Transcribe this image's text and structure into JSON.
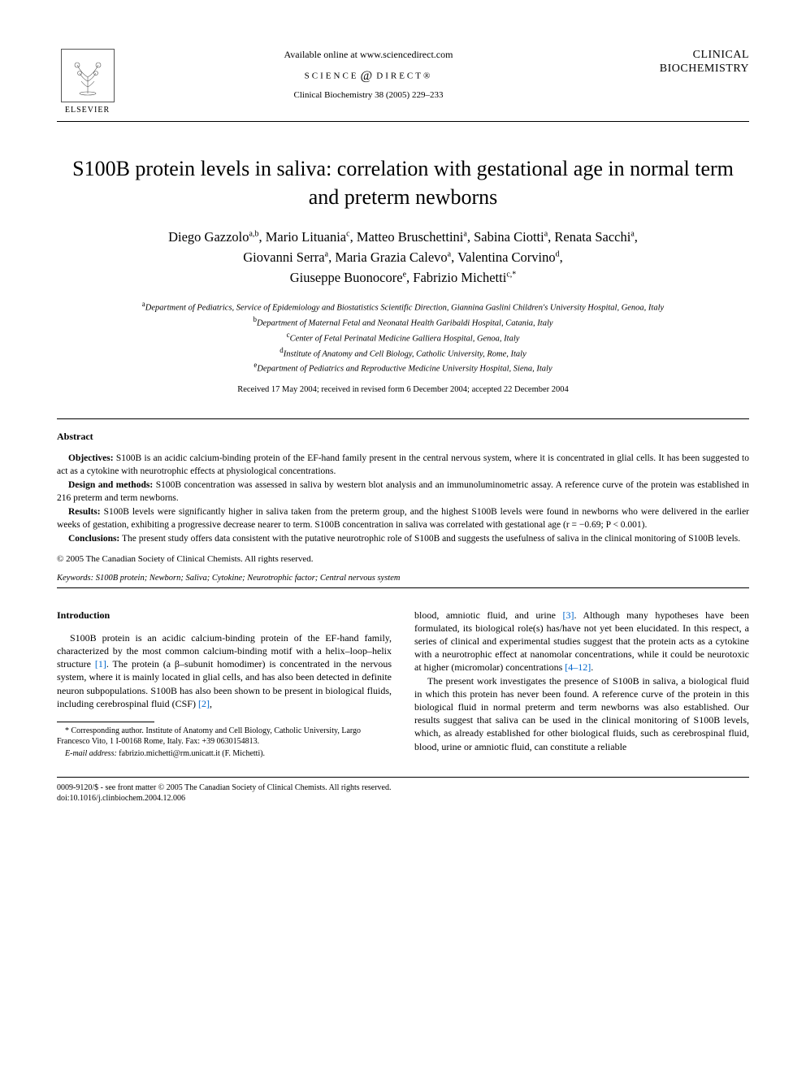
{
  "header": {
    "publisher": "ELSEVIER",
    "available": "Available online at www.sciencedirect.com",
    "portal": "SCIENCE",
    "portal2": "DIRECT®",
    "citation": "Clinical Biochemistry 38 (2005) 229–233",
    "journal_line1": "CLINICAL",
    "journal_line2": "BIOCHEMISTRY"
  },
  "title": "S100B protein levels in saliva: correlation with gestational age in normal term and preterm newborns",
  "authors_html": "Diego Gazzolo|a,b|, Mario Lituania|c|, Matteo Bruschettini|a|, Sabina Ciotti|a|, Renata Sacchi|a|, Giovanni Serra|a|, Maria Grazia Calevo|a|, Valentina Corvino|d|, Giuseppe Buonocore|e|, Fabrizio Michetti|c,*|",
  "affiliations": [
    {
      "sup": "a",
      "text": "Department of Pediatrics, Service of Epidemiology and Biostatistics Scientific Direction, Giannina Gaslini Children's University Hospital, Genoa, Italy"
    },
    {
      "sup": "b",
      "text": "Department of Maternal Fetal and Neonatal Health Garibaldi Hospital, Catania, Italy"
    },
    {
      "sup": "c",
      "text": "Center of Fetal Perinatal Medicine Galliera Hospital, Genoa, Italy"
    },
    {
      "sup": "d",
      "text": "Institute of Anatomy and Cell Biology, Catholic University, Rome, Italy"
    },
    {
      "sup": "e",
      "text": "Department of Pediatrics and Reproductive Medicine University Hospital, Siena, Italy"
    }
  ],
  "received": "Received 17 May 2004; received in revised form 6 December 2004; accepted 22 December 2004",
  "abstract": {
    "head": "Abstract",
    "objectives_label": "Objectives:",
    "objectives": "S100B is an acidic calcium-binding protein of the EF-hand family present in the central nervous system, where it is concentrated in glial cells. It has been suggested to act as a cytokine with neurotrophic effects at physiological concentrations.",
    "design_label": "Design and methods:",
    "design": "S100B concentration was assessed in saliva by western blot analysis and an immunoluminometric assay. A reference curve of the protein was established in 216 preterm and term newborns.",
    "results_label": "Results:",
    "results": "S100B levels were significantly higher in saliva taken from the preterm group, and the highest S100B levels were found in newborns who were delivered in the earlier weeks of gestation, exhibiting a progressive decrease nearer to term. S100B concentration in saliva was correlated with gestational age (r = −0.69; P < 0.001).",
    "conclusions_label": "Conclusions:",
    "conclusions": "The present study offers data consistent with the putative neurotrophic role of S100B and suggests the usefulness of saliva in the clinical monitoring of S100B levels.",
    "copyright": "© 2005 The Canadian Society of Clinical Chemists. All rights reserved."
  },
  "keywords": {
    "label": "Keywords:",
    "text": "S100B protein; Newborn; Saliva; Cytokine; Neurotrophic factor; Central nervous system"
  },
  "intro": {
    "head": "Introduction",
    "col1_p1a": "S100B protein is an acidic calcium-binding protein of the EF-hand family, characterized by the most common calcium-binding motif with a helix–loop–helix structure ",
    "ref1": "[1]",
    "col1_p1b": ". The protein (a β–subunit homodimer) is concentrated in the nervous system, where it is mainly located in glial cells, and has also been detected in definite neuron subpopulations. S100B has also been shown to be present in biological fluids, including cerebrospinal fluid (CSF) ",
    "ref2": "[2]",
    "col1_p1c": ",",
    "col2_p1a": "blood, amniotic fluid, and urine ",
    "ref3": "[3]",
    "col2_p1b": ". Although many hypotheses have been formulated, its biological role(s) has/have not yet been elucidated. In this respect, a series of clinical and experimental studies suggest that the protein acts as a cytokine with a neurotrophic effect at nanomolar concentrations, while it could be neurotoxic at higher (micromolar) concentrations ",
    "ref4": "[4–12]",
    "col2_p1c": ".",
    "col2_p2": "The present work investigates the presence of S100B in saliva, a biological fluid in which this protein has never been found. A reference curve of the protein in this biological fluid in normal preterm and term newborns was also established. Our results suggest that saliva can be used in the clinical monitoring of S100B levels, which, as already established for other biological fluids, such as cerebrospinal fluid, blood, urine or amniotic fluid, can constitute a reliable"
  },
  "footnotes": {
    "corr": "* Corresponding author. Institute of Anatomy and Cell Biology, Catholic University, Largo Francesco Vito, 1 I-00168 Rome, Italy. Fax: +39 0630154813.",
    "email_label": "E-mail address:",
    "email": "fabrizio.michetti@rm.unicatt.it (F. Michetti)."
  },
  "footer": {
    "line1": "0009-9120/$ - see front matter © 2005 The Canadian Society of Clinical Chemists. All rights reserved.",
    "line2": "doi:10.1016/j.clinbiochem.2004.12.006"
  },
  "colors": {
    "text": "#000000",
    "background": "#ffffff",
    "link": "#0066cc"
  },
  "typography": {
    "title_fontsize": 26,
    "authors_fontsize": 16.5,
    "body_fontsize": 12,
    "abstract_fontsize": 11.5,
    "footnote_fontsize": 10,
    "font_family": "Times New Roman"
  }
}
